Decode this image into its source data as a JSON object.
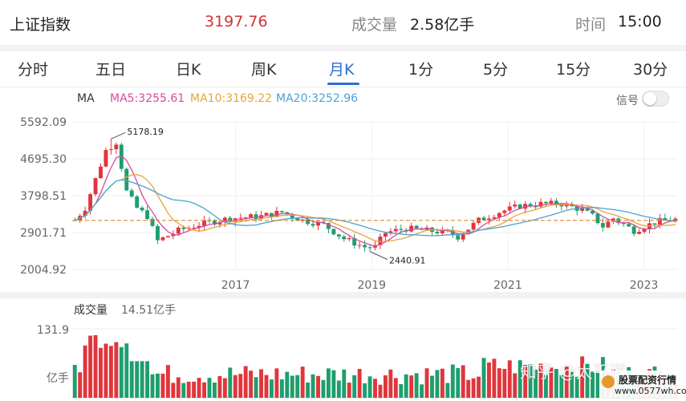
{
  "header": {
    "index_name": "上证指数",
    "price": "3197.76",
    "volume_label": "成交量",
    "volume_value": "2.58亿手",
    "time_label": "时间",
    "time_value": "15:00"
  },
  "tabs": [
    {
      "label": "分时",
      "active": false
    },
    {
      "label": "五日",
      "active": false
    },
    {
      "label": "日K",
      "active": false
    },
    {
      "label": "周K",
      "active": false
    },
    {
      "label": "月K",
      "active": true
    },
    {
      "label": "1分",
      "active": false
    },
    {
      "label": "5分",
      "active": false
    },
    {
      "label": "15分",
      "active": false
    },
    {
      "label": "30分",
      "active": false
    }
  ],
  "ma_bar": {
    "label": "MA",
    "ma5": "MA5:3255.61",
    "ma10": "MA10:3169.22",
    "ma20": "MA20:3252.96",
    "signal_label": "信号",
    "signal_on": false
  },
  "volume_bar": {
    "label": "成交量",
    "total": "14.51亿手"
  },
  "colors": {
    "up": "#e0363c",
    "down": "#1e9e6e",
    "ma5": "#d94aa0",
    "ma10": "#e1a63e",
    "ma20": "#4aa3cf",
    "current_line": "#e48a2a",
    "accent": "#2a6dd9"
  },
  "chart_data": {
    "type": "candlestick",
    "y_ticks": [
      "5592.09",
      "4695.30",
      "3798.51",
      "2901.71",
      "2004.92"
    ],
    "ylim": [
      2004.92,
      5592.09
    ],
    "x_ticks": [
      {
        "label": "2017",
        "year": 2017
      },
      {
        "label": "2019",
        "year": 2019
      },
      {
        "label": "2021",
        "year": 2021
      },
      {
        "label": "2023",
        "year": 2023
      }
    ],
    "x_range": [
      2014.6,
      2023.5
    ],
    "annotations": {
      "high": "5178.19",
      "low": "2440.91"
    },
    "current_value": 3197.76,
    "current_value_label": "3197.76",
    "volume_axis_top": "131.9",
    "volume_axis_unit": "亿手",
    "volume_max": 131.9
  },
  "watermark": "知乎 @太平洋",
  "logo": {
    "title": "股票配资行情",
    "url": "www.0577wh.com"
  }
}
